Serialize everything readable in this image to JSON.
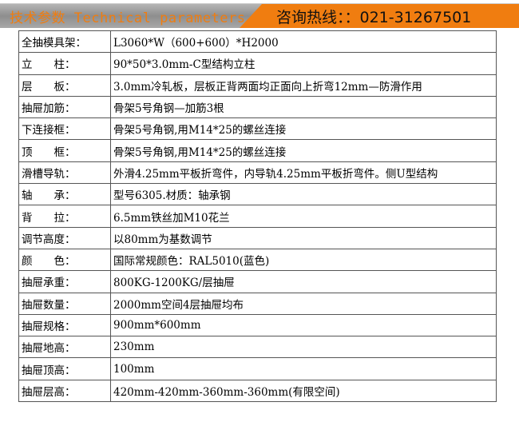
{
  "header": {
    "left_title": "技术参数 Technical parameters",
    "hotline": "咨询热线：：021-31267501",
    "accent": "#f07d10"
  },
  "rows": [
    {
      "label": "全抽模具架：",
      "value": "L3060*W（600+600）*H2000"
    },
    {
      "label": "立　　柱：",
      "value": "90*50*3.0mm-C型结构立柱"
    },
    {
      "label": "层　　板：",
      "value": "3.0mm冷轧板，层板正背两面均正面向上折弯12mm—防滑作用"
    },
    {
      "label": "抽屉加筋：",
      "value": "骨架5号角钢—加筋3根"
    },
    {
      "label": "下连接框：",
      "value": "骨架5号角钢,用M14*25的螺丝连接"
    },
    {
      "label": "顶　　框：",
      "value": "骨架5号角钢,用M14*25的螺丝连接"
    },
    {
      "label": "滑槽导轨：",
      "value": "外滑4.25mm平板折弯件，内导轨4.25mm平板折弯件。侧U型结构"
    },
    {
      "label": "轴　　承：",
      "value": "型号6305.材质：轴承钢"
    },
    {
      "label": "背　　拉：",
      "value": "6.5mm铁丝加M10花兰"
    },
    {
      "label": "调节高度：",
      "value": "以80mm为基数调节"
    },
    {
      "label": "颜　　色：",
      "value": "国际常规颜色：RAL5010(蓝色)"
    },
    {
      "label": "抽屉承重：",
      "value": "800KG-1200KG/层抽屉"
    },
    {
      "label": "抽屉数量：",
      "value": "2000mm空间4层抽屉均布"
    },
    {
      "label": "抽屉规格：",
      "value": "900mm*600mm"
    },
    {
      "label": "抽屉地高：",
      "value": "230mm"
    },
    {
      "label": "抽屉顶高：",
      "value": "100mm"
    },
    {
      "label": "抽屉层高：",
      "value": "420mm-420mm-360mm-360mm(有限空间)"
    }
  ]
}
